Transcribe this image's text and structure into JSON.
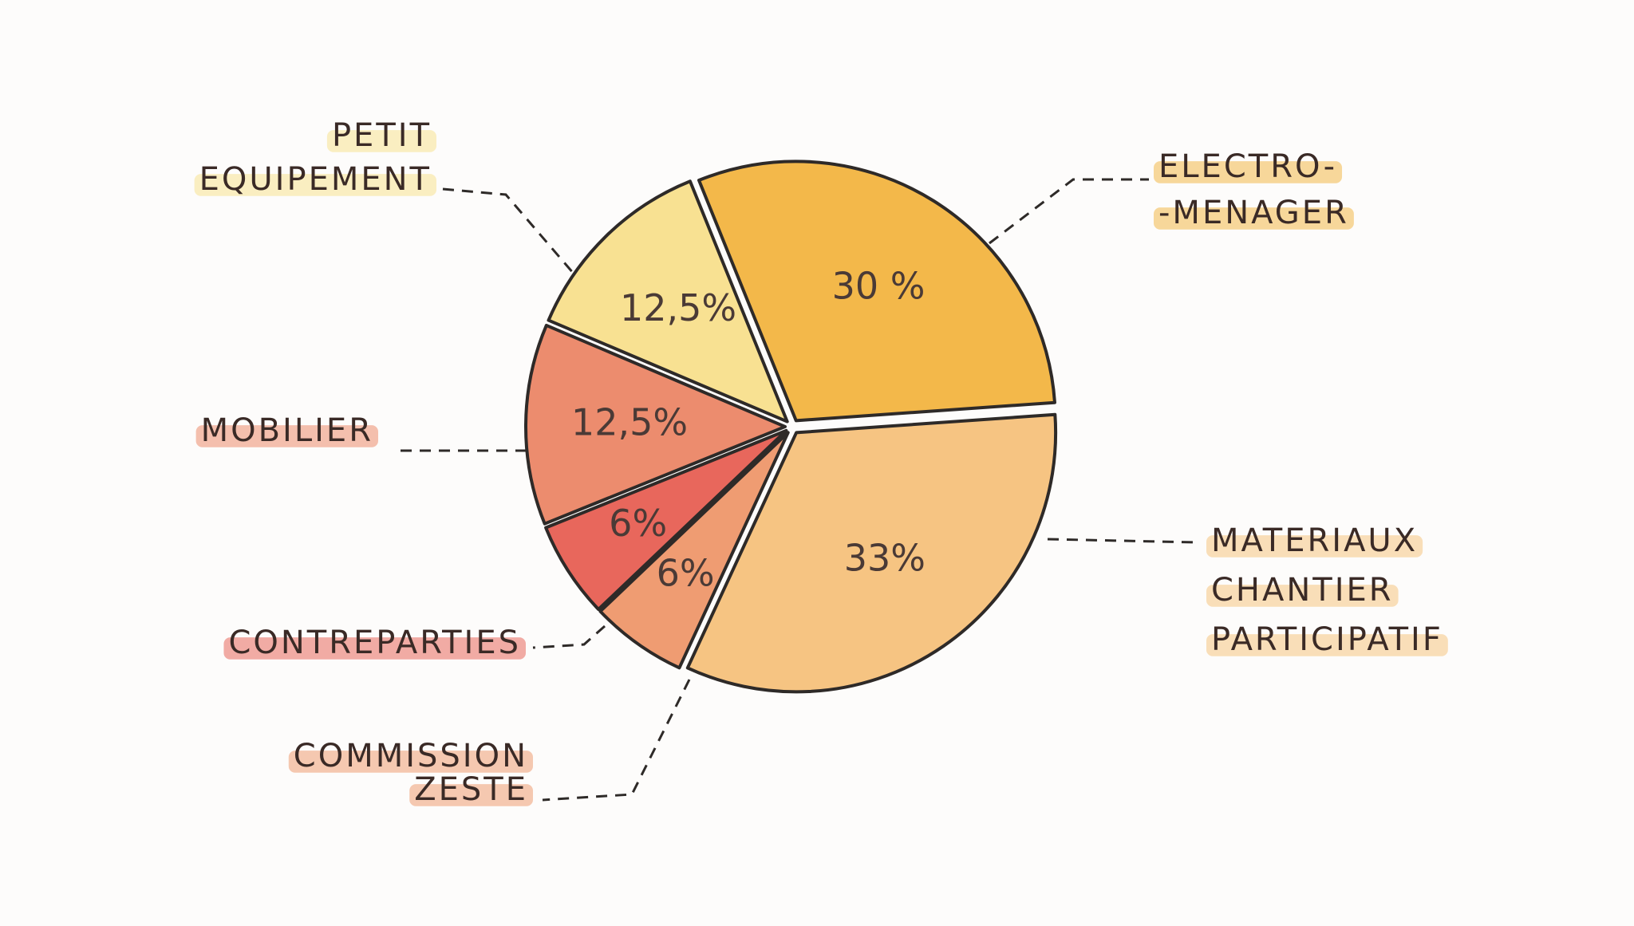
{
  "chart_data": {
    "type": "pie",
    "categories": [
      [
        "ELECTRO-",
        "-MENAGER"
      ],
      [
        "MATERIAUX",
        "CHANTIER",
        "PARTICIPATIF"
      ],
      [
        "COMMISSION",
        "ZESTE"
      ],
      [
        "CONTREPARTIES"
      ],
      [
        "MOBILIER"
      ],
      [
        "PETIT",
        "EQUIPEMENT"
      ]
    ],
    "values": [
      30,
      33,
      6,
      6,
      12.5,
      12.5
    ],
    "value_labels": [
      "30 %",
      "33%",
      "6%",
      "6%",
      "12,5%",
      "12,5%"
    ],
    "colors": [
      "#f3b84a",
      "#f6c482",
      "#ef9c72",
      "#e8675c",
      "#ec8c6e",
      "#f8e192"
    ]
  }
}
